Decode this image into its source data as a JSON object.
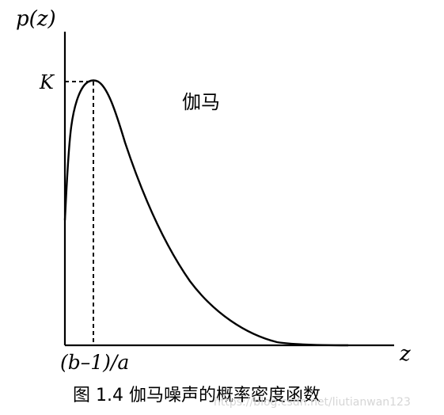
{
  "diagram": {
    "y_axis_label": "p(z)",
    "x_axis_label": "z",
    "peak_label": "K",
    "mode_label": "(b–1)/a",
    "curve_name": "伽马",
    "caption": "图 1.4  伽马噪声的概率密度函数",
    "watermark": "https://blog.csdn.net/liutianwan123"
  }
}
